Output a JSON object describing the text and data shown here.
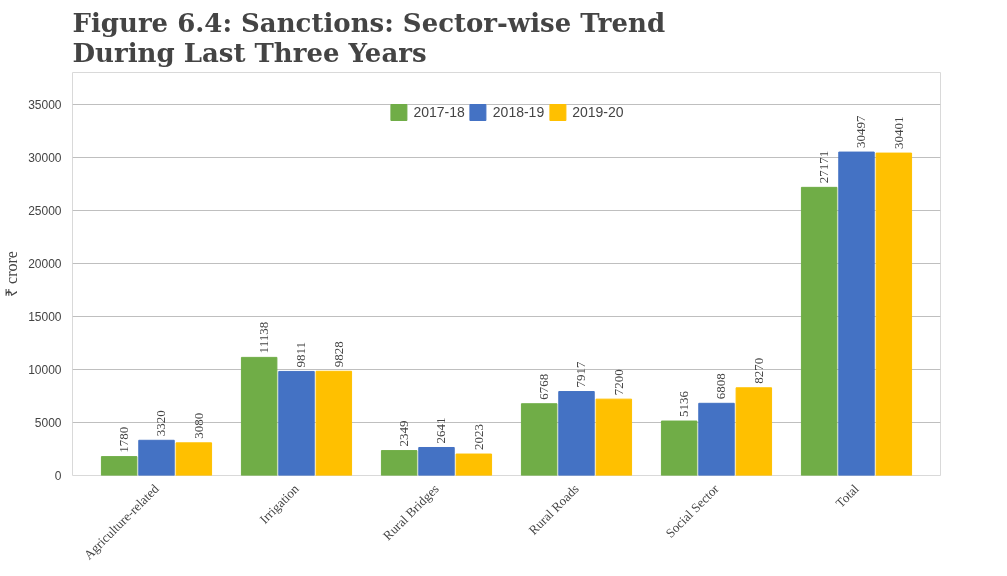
{
  "chart_data": {
    "type": "bar",
    "title": "Figure 6.4: Sanctions: Sector-wise Trend During Last Three Years",
    "ylabel": "₹ crore",
    "categories": [
      "Agriculture-related",
      "Irrigation",
      "Rural Bridges",
      "Rural Roads",
      "Social Sector",
      "Total"
    ],
    "series": [
      {
        "name": "2017-18",
        "color": "#70ad47",
        "values": [
          1780,
          11138,
          2349,
          6768,
          5136,
          27171
        ]
      },
      {
        "name": "2018-19",
        "color": "#4472c4",
        "values": [
          3320,
          9811,
          2641,
          7917,
          6808,
          30497
        ]
      },
      {
        "name": "2019-20",
        "color": "#ffc000",
        "values": [
          3080,
          9828,
          2023,
          7200,
          8270,
          30401
        ]
      }
    ],
    "ylim": [
      0,
      38000
    ],
    "yticks": [
      0,
      5000,
      10000,
      15000,
      20000,
      25000,
      30000,
      35000
    ],
    "grid": "y",
    "legend": "top",
    "data_labels": true
  }
}
